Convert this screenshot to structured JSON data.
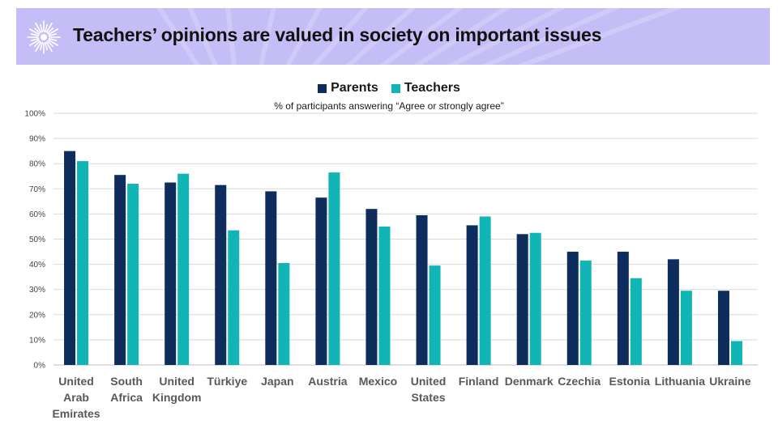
{
  "header": {
    "title": "Teachers’ opinions are valued in society on important issues",
    "background": "#c5bdf5"
  },
  "chart_data": {
    "type": "bar",
    "title": "Teachers’ opinions are valued in society on important issues",
    "subtitle": "% of participants answering “Agree or strongly agree”",
    "xlabel": "",
    "ylabel": "",
    "ylim": [
      0,
      100
    ],
    "yticks": [
      "0%",
      "10%",
      "20%",
      "30%",
      "40%",
      "50%",
      "60%",
      "70%",
      "80%",
      "90%",
      "100%"
    ],
    "grid": true,
    "legend_position": "top-center",
    "categories": [
      [
        "United",
        "Arab",
        "Emirates"
      ],
      [
        "South",
        "Africa"
      ],
      [
        "United",
        "Kingdom"
      ],
      [
        "Türkiye"
      ],
      [
        "Japan"
      ],
      [
        "Austria"
      ],
      [
        "Mexico"
      ],
      [
        "United",
        "States"
      ],
      [
        "Finland"
      ],
      [
        "Denmark"
      ],
      [
        "Czechia"
      ],
      [
        "Estonia"
      ],
      [
        "Lithuania"
      ],
      [
        "Ukraine"
      ]
    ],
    "series": [
      {
        "name": "Parents",
        "color": "#0f2d5c",
        "values": [
          85,
          75.5,
          72.5,
          71.5,
          69,
          66.5,
          62,
          59.5,
          55.5,
          52,
          45,
          45,
          42,
          29.5
        ]
      },
      {
        "name": "Teachers",
        "color": "#12b5b5",
        "values": [
          81,
          72,
          76,
          53.5,
          40.5,
          76.5,
          55,
          39.5,
          59,
          52.5,
          41.5,
          34.5,
          29.5,
          9.5
        ]
      }
    ]
  }
}
